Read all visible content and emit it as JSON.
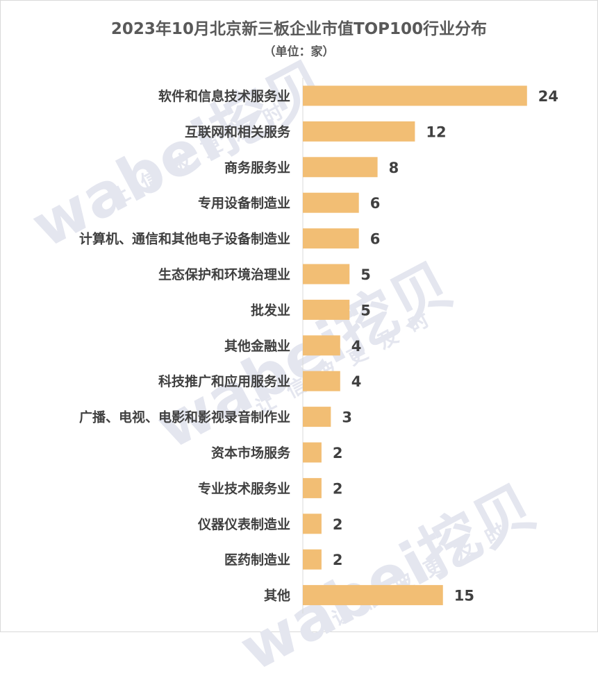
{
  "title": "2023年10月北京新三板企业市值TOP100行业分布",
  "subtitle": "（单位：家）",
  "watermark": {
    "brand": "wabei挖贝",
    "slogan": "让信披更及时"
  },
  "colors": {
    "bar": "#F2BE74",
    "text": "#404040",
    "title": "#595959",
    "watermark": "#E4E6EF"
  },
  "chart_data": {
    "type": "bar",
    "orientation": "horizontal",
    "title": "2023年10月北京新三板企业市值TOP100行业分布",
    "subtitle": "（单位：家）",
    "xlabel": "",
    "ylabel": "",
    "grid": false,
    "legend": "none",
    "xlim": [
      0,
      26
    ],
    "categories": [
      "软件和信息技术服务业",
      "互联网和相关服务",
      "商务服务业",
      "专用设备制造业",
      "计算机、通信和其他电子设备制造业",
      "生态保护和环境治理业",
      "批发业",
      "其他金融业",
      "科技推广和应用服务业",
      "广播、电视、电影和影视录音制作业",
      "资本市场服务",
      "专业技术服务业",
      "仪器仪表制造业",
      "医药制造业",
      "其他"
    ],
    "values": [
      24,
      12,
      8,
      6,
      6,
      5,
      5,
      4,
      4,
      3,
      2,
      2,
      2,
      2,
      15
    ]
  }
}
